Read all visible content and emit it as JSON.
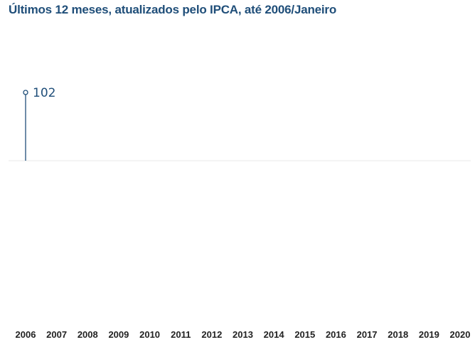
{
  "chart_data": {
    "type": "line",
    "title": "Últimos 12 meses, atualizados pelo IPCA, até 2006/Janeiro",
    "xlabel": "",
    "ylabel": "",
    "x": [
      "2006",
      "2007",
      "2008",
      "2009",
      "2010",
      "2011",
      "2012",
      "2013",
      "2014",
      "2015",
      "2016",
      "2017",
      "2018",
      "2019",
      "2020"
    ],
    "series": [
      {
        "values": [
          102,
          null,
          null,
          null,
          null,
          null,
          null,
          null,
          null,
          null,
          null,
          null,
          null,
          null,
          null
        ],
        "data_labels": [
          "102",
          "",
          "",
          "",
          "",
          "",
          "",
          "",
          "",
          "",
          "",
          "",
          "",
          "",
          ""
        ]
      }
    ],
    "grid": false,
    "legend": "none",
    "colors": {
      "series": "#1f4e79",
      "title": "#1f4e79",
      "baseline": "#e8e8e8",
      "tick_text": "#222222"
    }
  }
}
